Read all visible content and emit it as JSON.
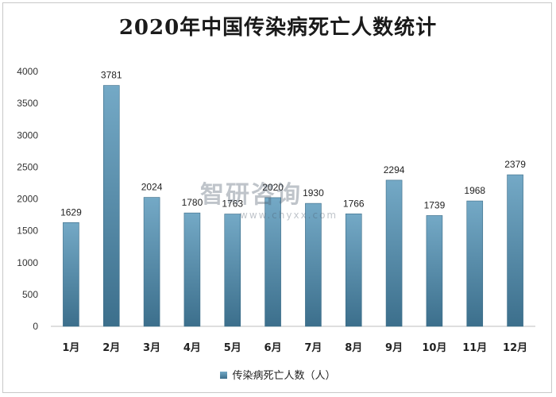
{
  "chart_data": {
    "type": "bar",
    "title": "2020年中国传染病死亡人数统计",
    "categories": [
      "1月",
      "2月",
      "3月",
      "4月",
      "5月",
      "6月",
      "7月",
      "8月",
      "9月",
      "10月",
      "11月",
      "12月"
    ],
    "series": [
      {
        "name": "传染病死亡人数（人）",
        "values": [
          1629,
          3781,
          2024,
          1780,
          1763,
          2020,
          1930,
          1766,
          2294,
          1739,
          1968,
          2379
        ]
      }
    ],
    "data_labels": [
      "1629",
      "3781",
      "2024",
      "1780",
      "1763",
      "2020",
      "1930",
      "1766",
      "2294",
      "1739",
      "1968",
      "2379"
    ],
    "ylim": [
      0,
      4000
    ],
    "yticks": [
      "0",
      "500",
      "1000",
      "1500",
      "2000",
      "2500",
      "3000",
      "3500",
      "4000"
    ],
    "grid": false,
    "legend_position": "bottom",
    "bar_color_top": "#74a9c6",
    "bar_color_bottom": "#3c6f8c"
  },
  "watermark": {
    "logo": "智研咨询",
    "url": "www.chyxx.com"
  }
}
